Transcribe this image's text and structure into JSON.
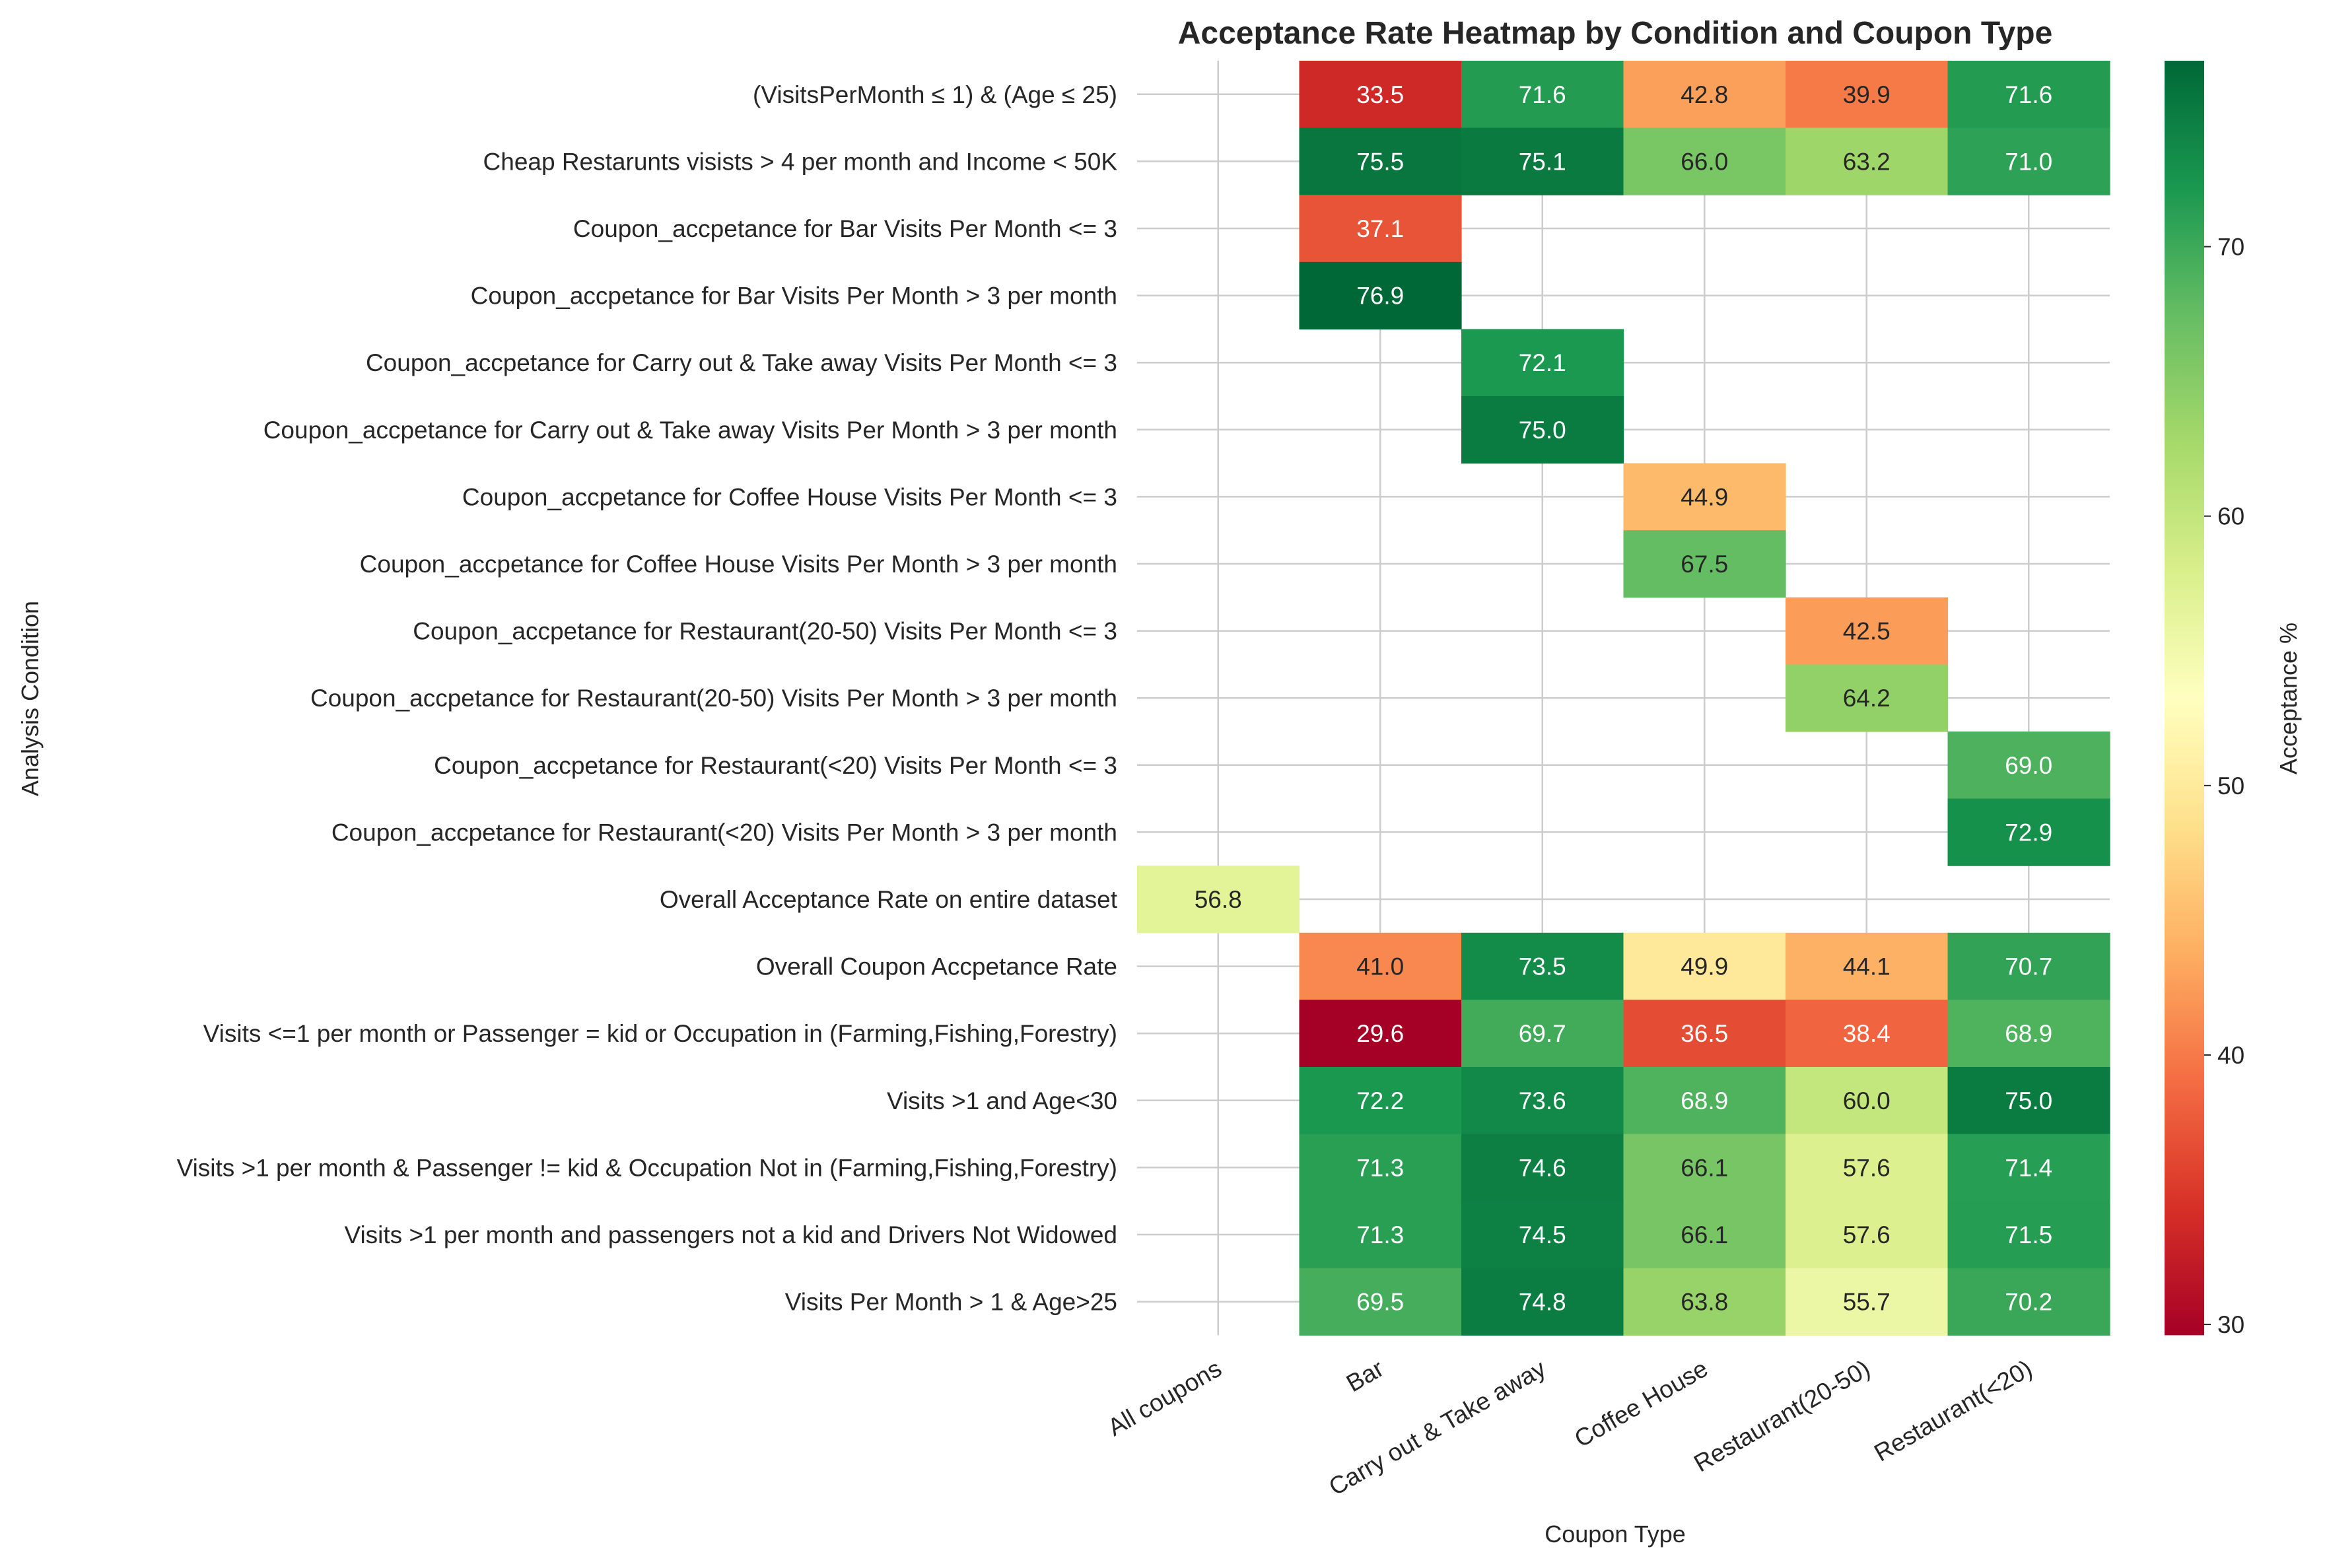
{
  "chart_data": {
    "type": "heatmap",
    "title": "Acceptance Rate Heatmap by Condition and Coupon Type",
    "xlabel": "Coupon Type",
    "ylabel": "Analysis Condition",
    "colorbar_label": "Acceptance %",
    "colormap": "RdYlGn",
    "vmin": 29.6,
    "vmax": 76.9,
    "colorbar_ticks": [
      30,
      40,
      50,
      60,
      70
    ],
    "grid": true,
    "columns": [
      "All coupons",
      "Bar",
      "Carry out & Take away",
      "Coffee House",
      "Restaurant(20-50)",
      "Restaurant(<20)"
    ],
    "rows": [
      "(VisitsPerMonth ≤ 1) & (Age ≤ 25)",
      "Cheap Restarunts visists > 4 per month and Income < 50K",
      "Coupon_accpetance for Bar Visits Per Month <= 3",
      "Coupon_accpetance for Bar Visits Per Month > 3 per month",
      "Coupon_accpetance for Carry out & Take away Visits Per Month <= 3",
      "Coupon_accpetance for Carry out & Take away Visits Per Month > 3 per month",
      "Coupon_accpetance for Coffee House Visits Per Month <= 3",
      "Coupon_accpetance for Coffee House Visits Per Month > 3 per month",
      "Coupon_accpetance for Restaurant(20-50) Visits Per Month <= 3",
      "Coupon_accpetance for Restaurant(20-50) Visits Per Month > 3 per month",
      "Coupon_accpetance for Restaurant(<20) Visits Per Month <= 3",
      "Coupon_accpetance for Restaurant(<20) Visits Per Month > 3 per month",
      "Overall Acceptance Rate on entire dataset",
      "Overall Coupon Accpetance Rate",
      "Visits <=1 per month or Passenger = kid or Occupation in (Farming,Fishing,Forestry)",
      "Visits >1 and Age<30",
      "Visits >1 per month & Passenger != kid & Occupation Not in (Farming,Fishing,Forestry)",
      "Visits >1 per month and passengers not a kid and Drivers Not Widowed",
      "Visits Per Month > 1 & Age>25"
    ],
    "values": [
      [
        null,
        33.5,
        71.6,
        42.8,
        39.9,
        71.6
      ],
      [
        null,
        75.5,
        75.1,
        66.0,
        63.2,
        71.0
      ],
      [
        null,
        37.1,
        null,
        null,
        null,
        null
      ],
      [
        null,
        76.9,
        null,
        null,
        null,
        null
      ],
      [
        null,
        null,
        72.1,
        null,
        null,
        null
      ],
      [
        null,
        null,
        75.0,
        null,
        null,
        null
      ],
      [
        null,
        null,
        null,
        44.9,
        null,
        null
      ],
      [
        null,
        null,
        null,
        67.5,
        null,
        null
      ],
      [
        null,
        null,
        null,
        null,
        42.5,
        null
      ],
      [
        null,
        null,
        null,
        null,
        64.2,
        null
      ],
      [
        null,
        null,
        null,
        null,
        null,
        69.0
      ],
      [
        null,
        null,
        null,
        null,
        null,
        72.9
      ],
      [
        56.8,
        null,
        null,
        null,
        null,
        null
      ],
      [
        null,
        41.0,
        73.5,
        49.9,
        44.1,
        70.7
      ],
      [
        null,
        29.6,
        69.7,
        36.5,
        38.4,
        68.9
      ],
      [
        null,
        72.2,
        73.6,
        68.9,
        60.0,
        75.0
      ],
      [
        null,
        71.3,
        74.6,
        66.1,
        57.6,
        71.4
      ],
      [
        null,
        71.3,
        74.5,
        66.1,
        57.6,
        71.5
      ],
      [
        null,
        69.5,
        74.8,
        63.8,
        55.7,
        70.2
      ]
    ]
  }
}
